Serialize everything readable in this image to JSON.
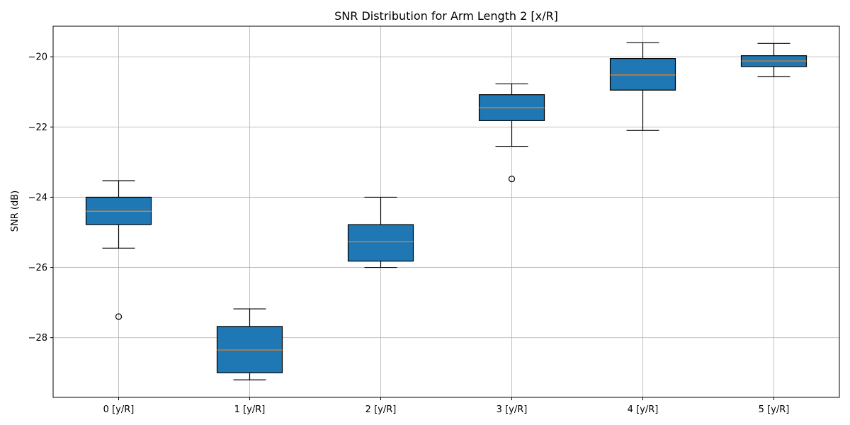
{
  "chart_data": {
    "type": "box",
    "title": "SNR Distribution for Arm Length 2 [x/R]",
    "xlabel": "",
    "ylabel": "SNR (dB)",
    "categories": [
      "0 [y/R]",
      "1 [y/R]",
      "2 [y/R]",
      "3 [y/R]",
      "4 [y/R]",
      "5 [y/R]"
    ],
    "boxes": [
      {
        "whisker_low": -25.45,
        "q1": -24.78,
        "median": -24.4,
        "q3": -24.0,
        "whisker_high": -23.53,
        "outliers": [
          -27.4
        ]
      },
      {
        "whisker_low": -29.2,
        "q1": -29.0,
        "median": -28.35,
        "q3": -27.68,
        "whisker_high": -27.18,
        "outliers": []
      },
      {
        "whisker_low": -26.0,
        "q1": -25.82,
        "median": -25.27,
        "q3": -24.78,
        "whisker_high": -24.0,
        "outliers": []
      },
      {
        "whisker_low": -22.55,
        "q1": -21.82,
        "median": -21.45,
        "q3": -21.08,
        "whisker_high": -20.77,
        "outliers": [
          -23.48
        ]
      },
      {
        "whisker_low": -22.1,
        "q1": -20.95,
        "median": -20.52,
        "q3": -20.05,
        "whisker_high": -19.6,
        "outliers": []
      },
      {
        "whisker_low": -20.57,
        "q1": -20.28,
        "median": -20.12,
        "q3": -19.97,
        "whisker_high": -19.62,
        "outliers": []
      }
    ],
    "ylim": [
      -29.7,
      -19.13
    ],
    "yticks": [
      -28,
      -26,
      -24,
      -22,
      -20
    ],
    "ytick_labels": [
      "−28",
      "−26",
      "−24",
      "−22",
      "−20"
    ],
    "grid": true,
    "colors": {
      "box_fill": "#1f77b4",
      "median": "#ff7f0e",
      "line": "#000000",
      "grid": "#b0b0b0"
    }
  }
}
